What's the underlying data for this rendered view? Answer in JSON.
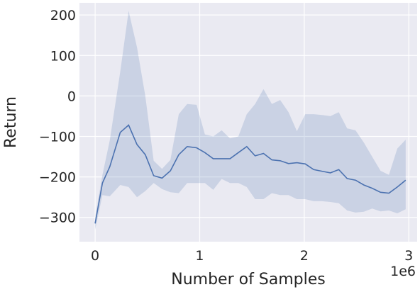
{
  "colors": {
    "plot_background": "#eaeaf2",
    "grid": "#ffffff",
    "line": "#4c72b0",
    "band": "#4c72b0"
  },
  "chart_data": {
    "type": "line",
    "xlabel": "Number of Samples",
    "ylabel": "Return",
    "x_offset_label": "1e6",
    "xlim": [
      -0.15,
      3.08
    ],
    "ylim": [
      -360,
      230
    ],
    "xticks": [
      0,
      1,
      2,
      3
    ],
    "xtick_labels": [
      "0",
      "1",
      "2",
      "3"
    ],
    "yticks": [
      -300,
      -200,
      -100,
      0,
      100,
      200
    ],
    "ytick_labels": [
      "−300",
      "−200",
      "−100",
      "0",
      "100",
      "200"
    ],
    "grid": true,
    "x": [
      0.0,
      0.07,
      0.14,
      0.24,
      0.32,
      0.4,
      0.48,
      0.56,
      0.64,
      0.72,
      0.8,
      0.88,
      0.97,
      1.05,
      1.13,
      1.21,
      1.29,
      1.37,
      1.45,
      1.53,
      1.61,
      1.69,
      1.77,
      1.85,
      1.93,
      2.01,
      2.09,
      2.17,
      2.25,
      2.33,
      2.41,
      2.49,
      2.57,
      2.65,
      2.73,
      2.81,
      2.89,
      2.97
    ],
    "series": [
      {
        "values": [
          -315,
          -215,
          -175,
          -90,
          -72,
          -120,
          -145,
          -197,
          -203,
          -185,
          -145,
          -125,
          -128,
          -140,
          -155,
          -155,
          -155,
          -140,
          -125,
          -148,
          -142,
          -158,
          -160,
          -167,
          -165,
          -168,
          -182,
          -186,
          -190,
          -182,
          -204,
          -208,
          -220,
          -228,
          -238,
          -240,
          -225,
          -208
        ],
        "lower": [
          -330,
          -245,
          -248,
          -220,
          -225,
          -250,
          -235,
          -215,
          -230,
          -238,
          -240,
          -215,
          -215,
          -215,
          -232,
          -205,
          -215,
          -215,
          -225,
          -255,
          -255,
          -240,
          -245,
          -245,
          -255,
          -255,
          -260,
          -260,
          -262,
          -265,
          -283,
          -288,
          -286,
          -278,
          -285,
          -283,
          -290,
          -280
        ],
        "upper": [
          -300,
          -195,
          -110,
          60,
          210,
          120,
          0,
          -160,
          -180,
          -158,
          -45,
          -20,
          -22,
          -95,
          -100,
          -85,
          -105,
          -100,
          -45,
          -20,
          17,
          -20,
          -10,
          -40,
          -87,
          -45,
          -45,
          -47,
          -50,
          -40,
          -80,
          -85,
          -115,
          -150,
          -185,
          -195,
          -130,
          -108
        ]
      }
    ]
  }
}
